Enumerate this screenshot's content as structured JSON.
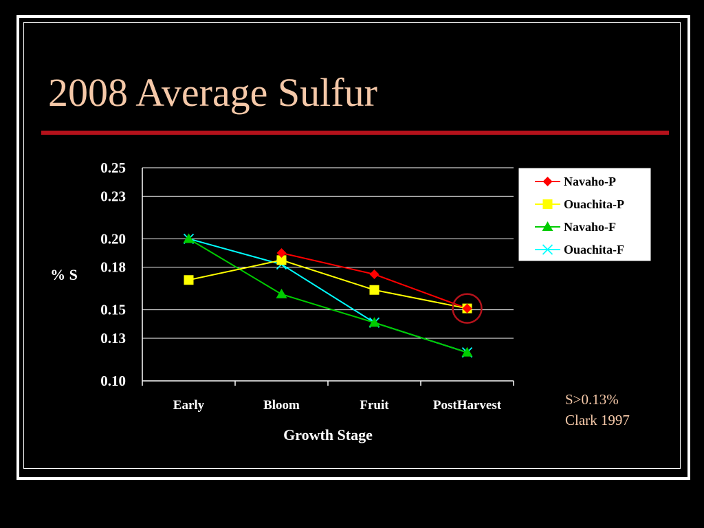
{
  "slide": {
    "title": "2008 Average Sulfur",
    "note_line1": "S>0.13%",
    "note_line2": "Clark 1997"
  },
  "colors": {
    "title_text": "#f5c8a8",
    "title_rule": "#b5121b",
    "background": "#000000",
    "highlight_circle": "#b5121b"
  },
  "chart_data": {
    "type": "line",
    "title": "",
    "xlabel": "Growth Stage",
    "ylabel": "% S",
    "categories": [
      "Early",
      "Bloom",
      "Fruit",
      "PostHarvest"
    ],
    "ylim": [
      0.1,
      0.25
    ],
    "yticks": [
      0.1,
      0.13,
      0.15,
      0.18,
      0.2,
      0.23,
      0.25
    ],
    "ytick_labels": [
      "0.10",
      "0.13",
      "0.15",
      "0.18",
      "0.20",
      "0.23",
      "0.25"
    ],
    "grid": true,
    "legend": "top-right",
    "series": [
      {
        "name": "Navaho-P",
        "color": "#ff0000",
        "marker": "diamond",
        "values": [
          null,
          0.19,
          0.175,
          0.151
        ]
      },
      {
        "name": "Ouachita-P",
        "color": "#ffff00",
        "marker": "square",
        "values": [
          0.171,
          0.185,
          0.164,
          0.151
        ]
      },
      {
        "name": "Navaho-F",
        "color": "#00cc00",
        "marker": "triangle",
        "values": [
          0.2,
          0.161,
          0.141,
          0.12
        ]
      },
      {
        "name": "Ouachita-F",
        "color": "#00ffff",
        "marker": "x",
        "values": [
          0.2,
          0.182,
          0.141,
          0.12
        ]
      }
    ],
    "annotations": [
      {
        "type": "circle",
        "series": "Ouachita-P",
        "category": "PostHarvest"
      }
    ]
  }
}
